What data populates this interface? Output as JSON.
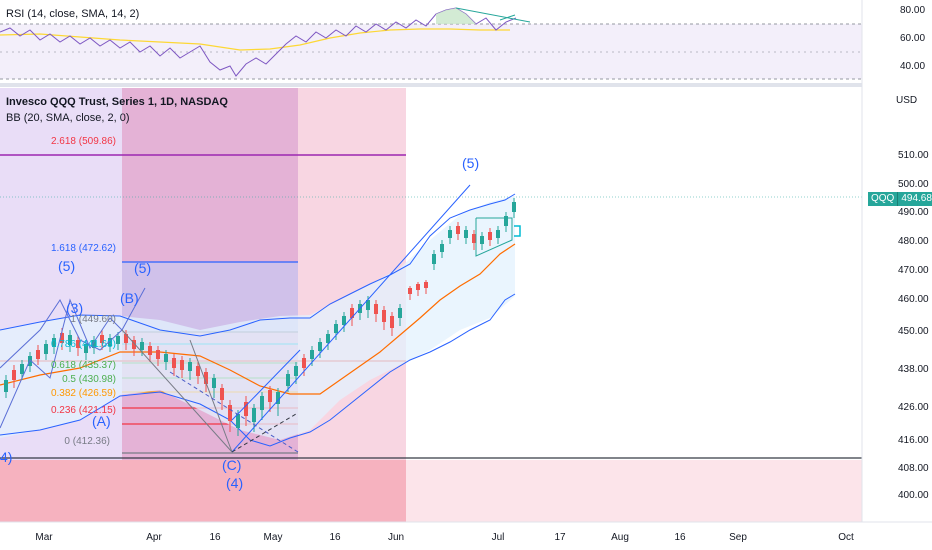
{
  "rsi_panel": {
    "title": "RSI (14, close, SMA, 14, 2)",
    "axis_labels": [
      "80.00",
      "60.00",
      "40.00"
    ]
  },
  "main_panel": {
    "title": "Invesco QQQ Trust, Series 1, 1D, NASDAQ",
    "indicator": "BB (20, SMA, close, 2, 0)",
    "currency": "USD",
    "price_labels": [
      "510.00",
      "500.00",
      "490.00",
      "480.00",
      "470.00",
      "460.00",
      "450.00",
      "438.00",
      "426.00",
      "416.00",
      "408.00",
      "400.00"
    ],
    "last_price": {
      "symbol": "QQQ",
      "value": "494.68"
    }
  },
  "fib_levels": [
    {
      "label": "2.618 (509.86)",
      "color": "#ef5350"
    },
    {
      "label": "1.618 (472.62)",
      "color": "#2962ff"
    },
    {
      "label": "1 (449.60)",
      "color": "#787b86"
    },
    {
      "label": "0.786 (441.63)",
      "color": "#00bcd4"
    },
    {
      "label": "0.618 (435.37)",
      "color": "#4caf50"
    },
    {
      "label": "0.5 (430.98)",
      "color": "#4caf50"
    },
    {
      "label": "0.382 (426.59)",
      "color": "#ff9800"
    },
    {
      "label": "0.236 (421.15)",
      "color": "#f23645"
    },
    {
      "label": "0 (412.36)",
      "color": "#787b86"
    }
  ],
  "wave_labels": [
    "(5)",
    "(5)",
    "(5)",
    "(3)",
    "(B)",
    "(A)",
    "(C)",
    "(4)",
    "4)"
  ],
  "x_axis": [
    "Mar",
    "Apr",
    "16",
    "May",
    "16",
    "Jun",
    "Jul",
    "17",
    "Aug",
    "16",
    "Sep",
    "Oct"
  ],
  "colors": {
    "bb_upper": "#2962ff",
    "bb_basis": "#ff6d00",
    "bb_fill": "#e3f2fd",
    "rsi_line": "#7e57c2",
    "rsi_ma": "#fdd835",
    "candle_up": "#26a69a",
    "candle_down": "#ef5350",
    "support_line": "#363a45"
  }
}
